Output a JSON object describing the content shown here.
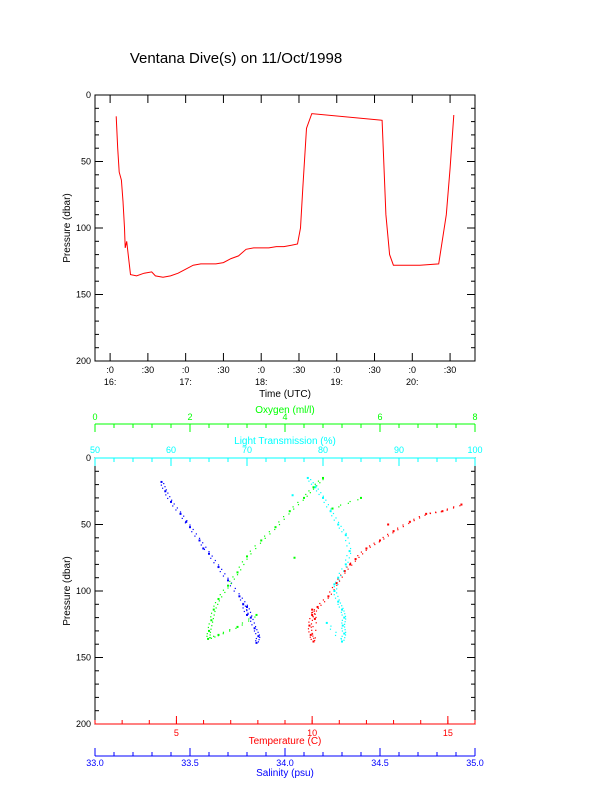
{
  "title": "Ventana Dive(s) on 11/Oct/1998",
  "colors": {
    "axis": "#000000",
    "trace": "#ff0000",
    "temperature": "#ff0000",
    "salinity": "#0000ff",
    "oxygen": "#00ff00",
    "transmission": "#00ffff"
  },
  "chart_data": [
    {
      "type": "line",
      "name_hint": "time-series",
      "xlabel": "Time (UTC)",
      "ylabel": "Pressure (dbar)",
      "y_inverted": true,
      "ylim": [
        0,
        200
      ],
      "xlim_hours": [
        15.8,
        20.83
      ],
      "y_ticks": [
        "0",
        "50",
        "100",
        "150",
        "200"
      ],
      "x_ticks": [
        {
          "t": 16.0,
          "top": ":0",
          "bottom": "16:"
        },
        {
          "t": 16.5,
          "top": ":30",
          "bottom": ""
        },
        {
          "t": 17.0,
          "top": ":0",
          "bottom": "17:"
        },
        {
          "t": 17.5,
          "top": ":30",
          "bottom": ""
        },
        {
          "t": 18.0,
          "top": ":0",
          "bottom": "18:"
        },
        {
          "t": 18.5,
          "top": ":30",
          "bottom": ""
        },
        {
          "t": 19.0,
          "top": ":0",
          "bottom": "19:"
        },
        {
          "t": 19.5,
          "top": ":30",
          "bottom": ""
        },
        {
          "t": 20.0,
          "top": ":0",
          "bottom": "20:"
        },
        {
          "t": 20.5,
          "top": ":30",
          "bottom": ""
        }
      ],
      "series": [
        {
          "color": "#ff0000",
          "points": [
            [
              16.08,
              16
            ],
            [
              16.1,
              40
            ],
            [
              16.12,
              58
            ],
            [
              16.15,
              64
            ],
            [
              16.17,
              80
            ],
            [
              16.19,
              100
            ],
            [
              16.2,
              115
            ],
            [
              16.22,
              110
            ],
            [
              16.24,
              120
            ],
            [
              16.27,
              135
            ],
            [
              16.35,
              136
            ],
            [
              16.45,
              134
            ],
            [
              16.55,
              133
            ],
            [
              16.6,
              136
            ],
            [
              16.7,
              137
            ],
            [
              16.8,
              136
            ],
            [
              16.9,
              134
            ],
            [
              17.0,
              131
            ],
            [
              17.1,
              128
            ],
            [
              17.2,
              127
            ],
            [
              17.4,
              127
            ],
            [
              17.5,
              126
            ],
            [
              17.6,
              123
            ],
            [
              17.7,
              121
            ],
            [
              17.8,
              116
            ],
            [
              17.9,
              115
            ],
            [
              18.0,
              115
            ],
            [
              18.1,
              115
            ],
            [
              18.2,
              114
            ],
            [
              18.3,
              114
            ],
            [
              18.4,
              113
            ],
            [
              18.48,
              112
            ],
            [
              18.52,
              100
            ],
            [
              18.55,
              70
            ],
            [
              18.6,
              25
            ],
            [
              18.67,
              14
            ],
            [
              19.6,
              19
            ],
            [
              19.65,
              90
            ],
            [
              19.7,
              120
            ],
            [
              19.75,
              128
            ],
            [
              19.9,
              128
            ],
            [
              20.1,
              128
            ],
            [
              20.35,
              127
            ],
            [
              20.45,
              90
            ],
            [
              20.5,
              55
            ],
            [
              20.55,
              15
            ]
          ]
        }
      ]
    },
    {
      "type": "scatter",
      "name_hint": "profiles",
      "ylabel": "Pressure (dbar)",
      "y_inverted": true,
      "ylim": [
        0,
        200
      ],
      "y_ticks": [
        "0",
        "50",
        "100",
        "150",
        "200"
      ],
      "axes": {
        "oxygen": {
          "label": "Oxygen (ml/l)",
          "range": [
            0,
            8
          ],
          "ticks": [
            "0",
            "2",
            "4",
            "6",
            "8"
          ]
        },
        "transmission": {
          "label": "Light Transmission (%)",
          "range": [
            50,
            100
          ],
          "ticks": [
            "50",
            "60",
            "70",
            "80",
            "90",
            "100"
          ]
        },
        "temperature": {
          "label": "Temperature (C)",
          "range": [
            2,
            16
          ],
          "ticks": [
            "5",
            "10",
            "15"
          ],
          "tick_values": [
            5,
            10,
            15
          ]
        },
        "salinity": {
          "label": "Salinity (psu)",
          "range": [
            33.0,
            35.0
          ],
          "ticks": [
            "33.0",
            "33.5",
            "34.0",
            "34.5",
            "35.0"
          ]
        }
      },
      "series": [
        {
          "name": "Temperature",
          "axis": "temperature",
          "color": "#ff0000",
          "points": [
            [
              15.5,
              35
            ],
            [
              14.8,
              40
            ],
            [
              14.2,
              42
            ],
            [
              13.6,
              48
            ],
            [
              13.0,
              55
            ],
            [
              12.5,
              62
            ],
            [
              12.0,
              68
            ],
            [
              11.6,
              76
            ],
            [
              11.2,
              85
            ],
            [
              10.9,
              94
            ],
            [
              10.6,
              104
            ],
            [
              10.2,
              112
            ],
            [
              10.0,
              118
            ],
            [
              9.9,
              126
            ],
            [
              9.95,
              133
            ],
            [
              10.05,
              138
            ],
            [
              10.1,
              121
            ],
            [
              10.0,
              114
            ],
            [
              12.8,
              50
            ],
            [
              11.4,
              80
            ]
          ]
        },
        {
          "name": "Salinity",
          "axis": "salinity",
          "color": "#0000ff",
          "points": [
            [
              33.35,
              18
            ],
            [
              33.37,
              25
            ],
            [
              33.4,
              33
            ],
            [
              33.45,
              42
            ],
            [
              33.5,
              52
            ],
            [
              33.55,
              62
            ],
            [
              33.6,
              72
            ],
            [
              33.65,
              82
            ],
            [
              33.7,
              92
            ],
            [
              33.76,
              104
            ],
            [
              33.8,
              112
            ],
            [
              33.82,
              120
            ],
            [
              33.84,
              128
            ],
            [
              33.86,
              134
            ],
            [
              33.85,
              139
            ],
            [
              33.8,
              118
            ],
            [
              33.78,
              110
            ],
            [
              33.57,
              68
            ],
            [
              33.48,
              48
            ]
          ]
        },
        {
          "name": "Oxygen",
          "axis": "oxygen",
          "color": "#00ff00",
          "points": [
            [
              4.8,
              15
            ],
            [
              4.6,
              22
            ],
            [
              4.4,
              30
            ],
            [
              4.1,
              40
            ],
            [
              3.8,
              52
            ],
            [
              3.5,
              62
            ],
            [
              3.2,
              74
            ],
            [
              3.0,
              86
            ],
            [
              2.8,
              96
            ],
            [
              2.6,
              106
            ],
            [
              2.5,
              114
            ],
            [
              2.45,
              122
            ],
            [
              2.4,
              130
            ],
            [
              2.38,
              136
            ],
            [
              2.6,
              133
            ],
            [
              3.0,
              127
            ],
            [
              3.4,
              118
            ],
            [
              4.2,
              75
            ],
            [
              5.0,
              38
            ],
            [
              5.6,
              30
            ]
          ]
        },
        {
          "name": "Light Transmission",
          "axis": "transmission",
          "color": "#00ffff",
          "points": [
            [
              78,
              15
            ],
            [
              79,
              22
            ],
            [
              80,
              30
            ],
            [
              81,
              40
            ],
            [
              82,
              50
            ],
            [
              83,
              58
            ],
            [
              83.5,
              70
            ],
            [
              83,
              80
            ],
            [
              82,
              90
            ],
            [
              81.5,
              100
            ],
            [
              82,
              108
            ],
            [
              82.5,
              114
            ],
            [
              82.8,
              120
            ],
            [
              82.6,
              126
            ],
            [
              82.8,
              132
            ],
            [
              82.5,
              138
            ],
            [
              80.5,
              124
            ],
            [
              81.5,
              95
            ],
            [
              76,
              28
            ]
          ]
        }
      ]
    }
  ]
}
